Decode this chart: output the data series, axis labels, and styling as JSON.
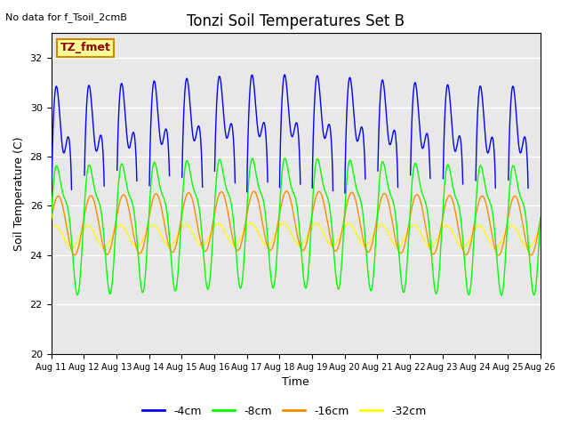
{
  "title": "Tonzi Soil Temperatures Set B",
  "xlabel": "Time",
  "ylabel": "Soil Temperature (C)",
  "note": "No data for f_Tsoil_2cmB",
  "legend_label": "TZ_fmet",
  "ylim": [
    20,
    33
  ],
  "xlim": [
    0,
    15
  ],
  "background_color": "#e8e8e8",
  "colors": {
    "4cm": "#0000ff",
    "8cm": "#00ff00",
    "16cm": "#ff8c00",
    "32cm": "#ffff00"
  },
  "xtick_labels": [
    "Aug 11",
    "Aug 12",
    "Aug 13",
    "Aug 14",
    "Aug 15",
    "Aug 16",
    "Aug 17",
    "Aug 18",
    "Aug 19",
    "Aug 20",
    "Aug 21",
    "Aug 22",
    "Aug 23",
    "Aug 24",
    "Aug 25",
    "Aug 26"
  ],
  "ytick_labels": [
    "20",
    "22",
    "24",
    "26",
    "28",
    "30",
    "32"
  ],
  "ytick_values": [
    20,
    22,
    24,
    26,
    28,
    30,
    32
  ],
  "figsize": [
    6.4,
    4.8
  ],
  "dpi": 100,
  "blue_mean": 26.5,
  "blue_amp1": 3.8,
  "blue_amp2": 2.2,
  "green_mean": 25.5,
  "green_amp1": 2.3,
  "green_amp2": 0.8,
  "orange_mean": 25.3,
  "orange_amp": 1.2,
  "yellow_mean": 24.8,
  "yellow_amp": 0.45
}
